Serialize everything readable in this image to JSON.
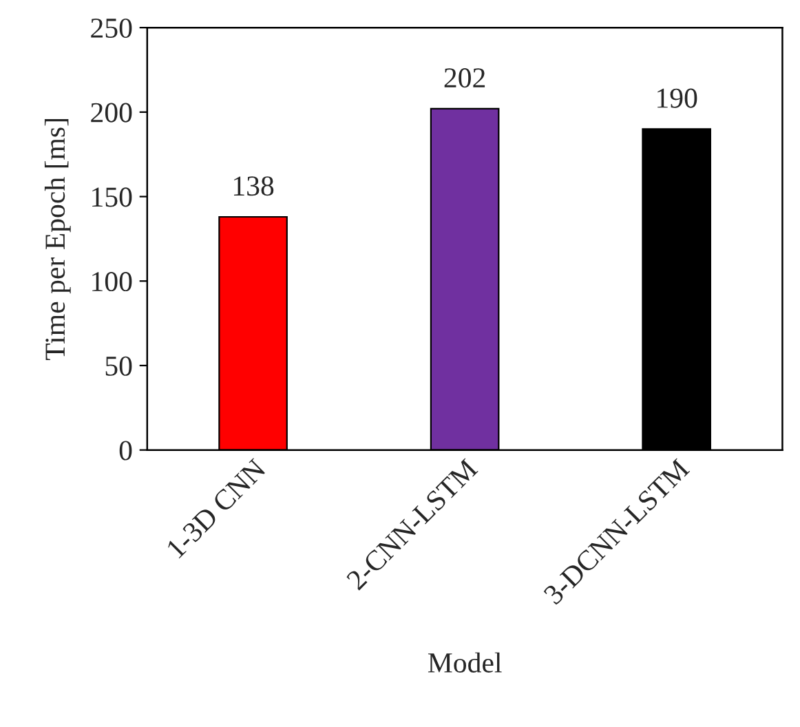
{
  "chart_data": {
    "type": "bar",
    "xlabel": "Model",
    "ylabel": "Time per Epoch [ms]",
    "categories": [
      "1-3D CNN",
      "2-CNN-LSTM",
      "3-DCNN-LSTM"
    ],
    "values": [
      138,
      202,
      190
    ],
    "colors": [
      "#ff0000",
      "#7030a0",
      "#000000"
    ],
    "ylim": [
      0,
      250
    ],
    "yticks": [
      0,
      50,
      100,
      150,
      200,
      250
    ],
    "data_labels": true,
    "grid": false,
    "legend": false
  }
}
